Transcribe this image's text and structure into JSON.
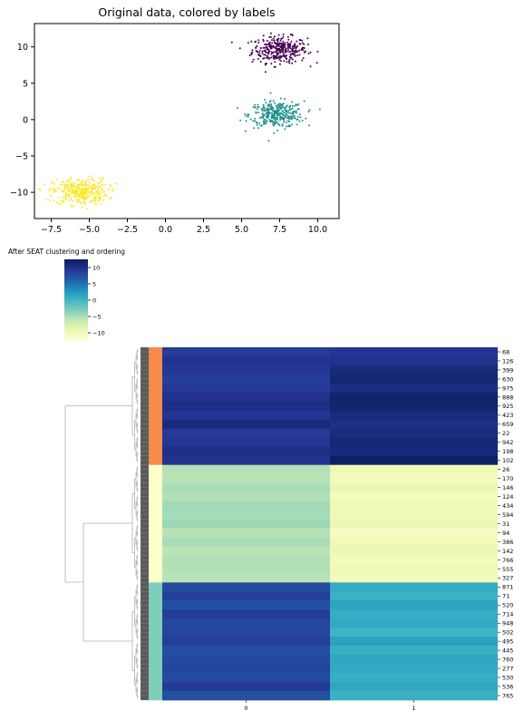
{
  "chart_data": [
    {
      "type": "scatter",
      "title": "Original data, colored by labels",
      "xlabel": "",
      "ylabel": "",
      "xlim": [
        -8.6,
        11.4
      ],
      "ylim": [
        -13.6,
        13.2
      ],
      "xticks": [
        "−7.5",
        "−5.0",
        "−2.5",
        "0.0",
        "2.5",
        "5.0",
        "7.5",
        "10.0"
      ],
      "xtick_values": [
        -7.5,
        -5.0,
        -2.5,
        0.0,
        2.5,
        5.0,
        7.5,
        10.0
      ],
      "yticks": [
        "10",
        "5",
        "0",
        "−5",
        "−10"
      ],
      "ytick_values": [
        10,
        5,
        0,
        -5,
        -10
      ],
      "grid": false,
      "series": [
        {
          "center": [
            7.5,
            9.6
          ],
          "spread": [
            0.9,
            0.9
          ],
          "count": 330,
          "color": "#440154"
        },
        {
          "center": [
            7.3,
            0.7
          ],
          "spread": [
            0.9,
            0.9
          ],
          "count": 330,
          "color": "#21918c"
        },
        {
          "center": [
            -5.6,
            -9.9
          ],
          "spread": [
            0.9,
            0.9
          ],
          "count": 330,
          "color": "#fde725"
        }
      ]
    },
    {
      "type": "heatmap",
      "title": "After SEAT clustering and ordering",
      "columns": [
        "0",
        "1"
      ],
      "colorbar": {
        "ticks": [
          "10",
          "5",
          "0",
          "−5",
          "−10"
        ],
        "tick_values": [
          10,
          5,
          0,
          -5,
          -10
        ],
        "vmin": -12.5,
        "vmax": 12.5,
        "colormap": "YlGnBu"
      },
      "row_labels": [
        "68",
        "126",
        "399",
        "630",
        "975",
        "888",
        "925",
        "423",
        "659",
        "22",
        "942",
        "198",
        "102",
        "26",
        "170",
        "146",
        "124",
        "434",
        "594",
        "31",
        "94",
        "386",
        "142",
        "766",
        "555",
        "327",
        "871",
        "71",
        "520",
        "714",
        "948",
        "502",
        "495",
        "445",
        "760",
        "277",
        "530",
        "536",
        "765"
      ],
      "clusters": [
        {
          "color": "#f58b4c",
          "band_count": 13,
          "col0": [
            8.8,
            9.6,
            9.2,
            8.6,
            9.0,
            9.8,
            10.2,
            9.4,
            10.6,
            9.0,
            9.3,
            10.1,
            9.7
          ],
          "col1": [
            9.4,
            9.8,
            10.6,
            11.2,
            10.3,
            11.6,
            11.4,
            10.8,
            10.1,
            10.5,
            11.1,
            10.7,
            11.9
          ]
        },
        {
          "color": "#ffffcc",
          "band_count": 13,
          "col0": [
            -5.4,
            -5.6,
            -5.0,
            -5.3,
            -4.6,
            -4.8,
            -4.4,
            -5.5,
            -4.9,
            -5.7,
            -5.2,
            -5.4,
            -5.6
          ],
          "col1": [
            -9.6,
            -10.2,
            -9.1,
            -10.4,
            -9.8,
            -10.0,
            -9.3,
            -10.7,
            -9.9,
            -9.5,
            -10.3,
            -9.7,
            -10.1
          ]
        },
        {
          "color": "#7fcdbb",
          "band_count": 13,
          "col0": [
            7.6,
            8.4,
            7.2,
            8.8,
            7.9,
            8.1,
            8.6,
            7.4,
            7.8,
            8.2,
            7.6,
            8.9,
            7.3
          ],
          "col1": [
            1.0,
            0.4,
            1.6,
            0.8,
            1.2,
            0.2,
            1.8,
            0.6,
            1.4,
            1.1,
            0.7,
            1.3,
            0.5
          ]
        }
      ]
    }
  ]
}
